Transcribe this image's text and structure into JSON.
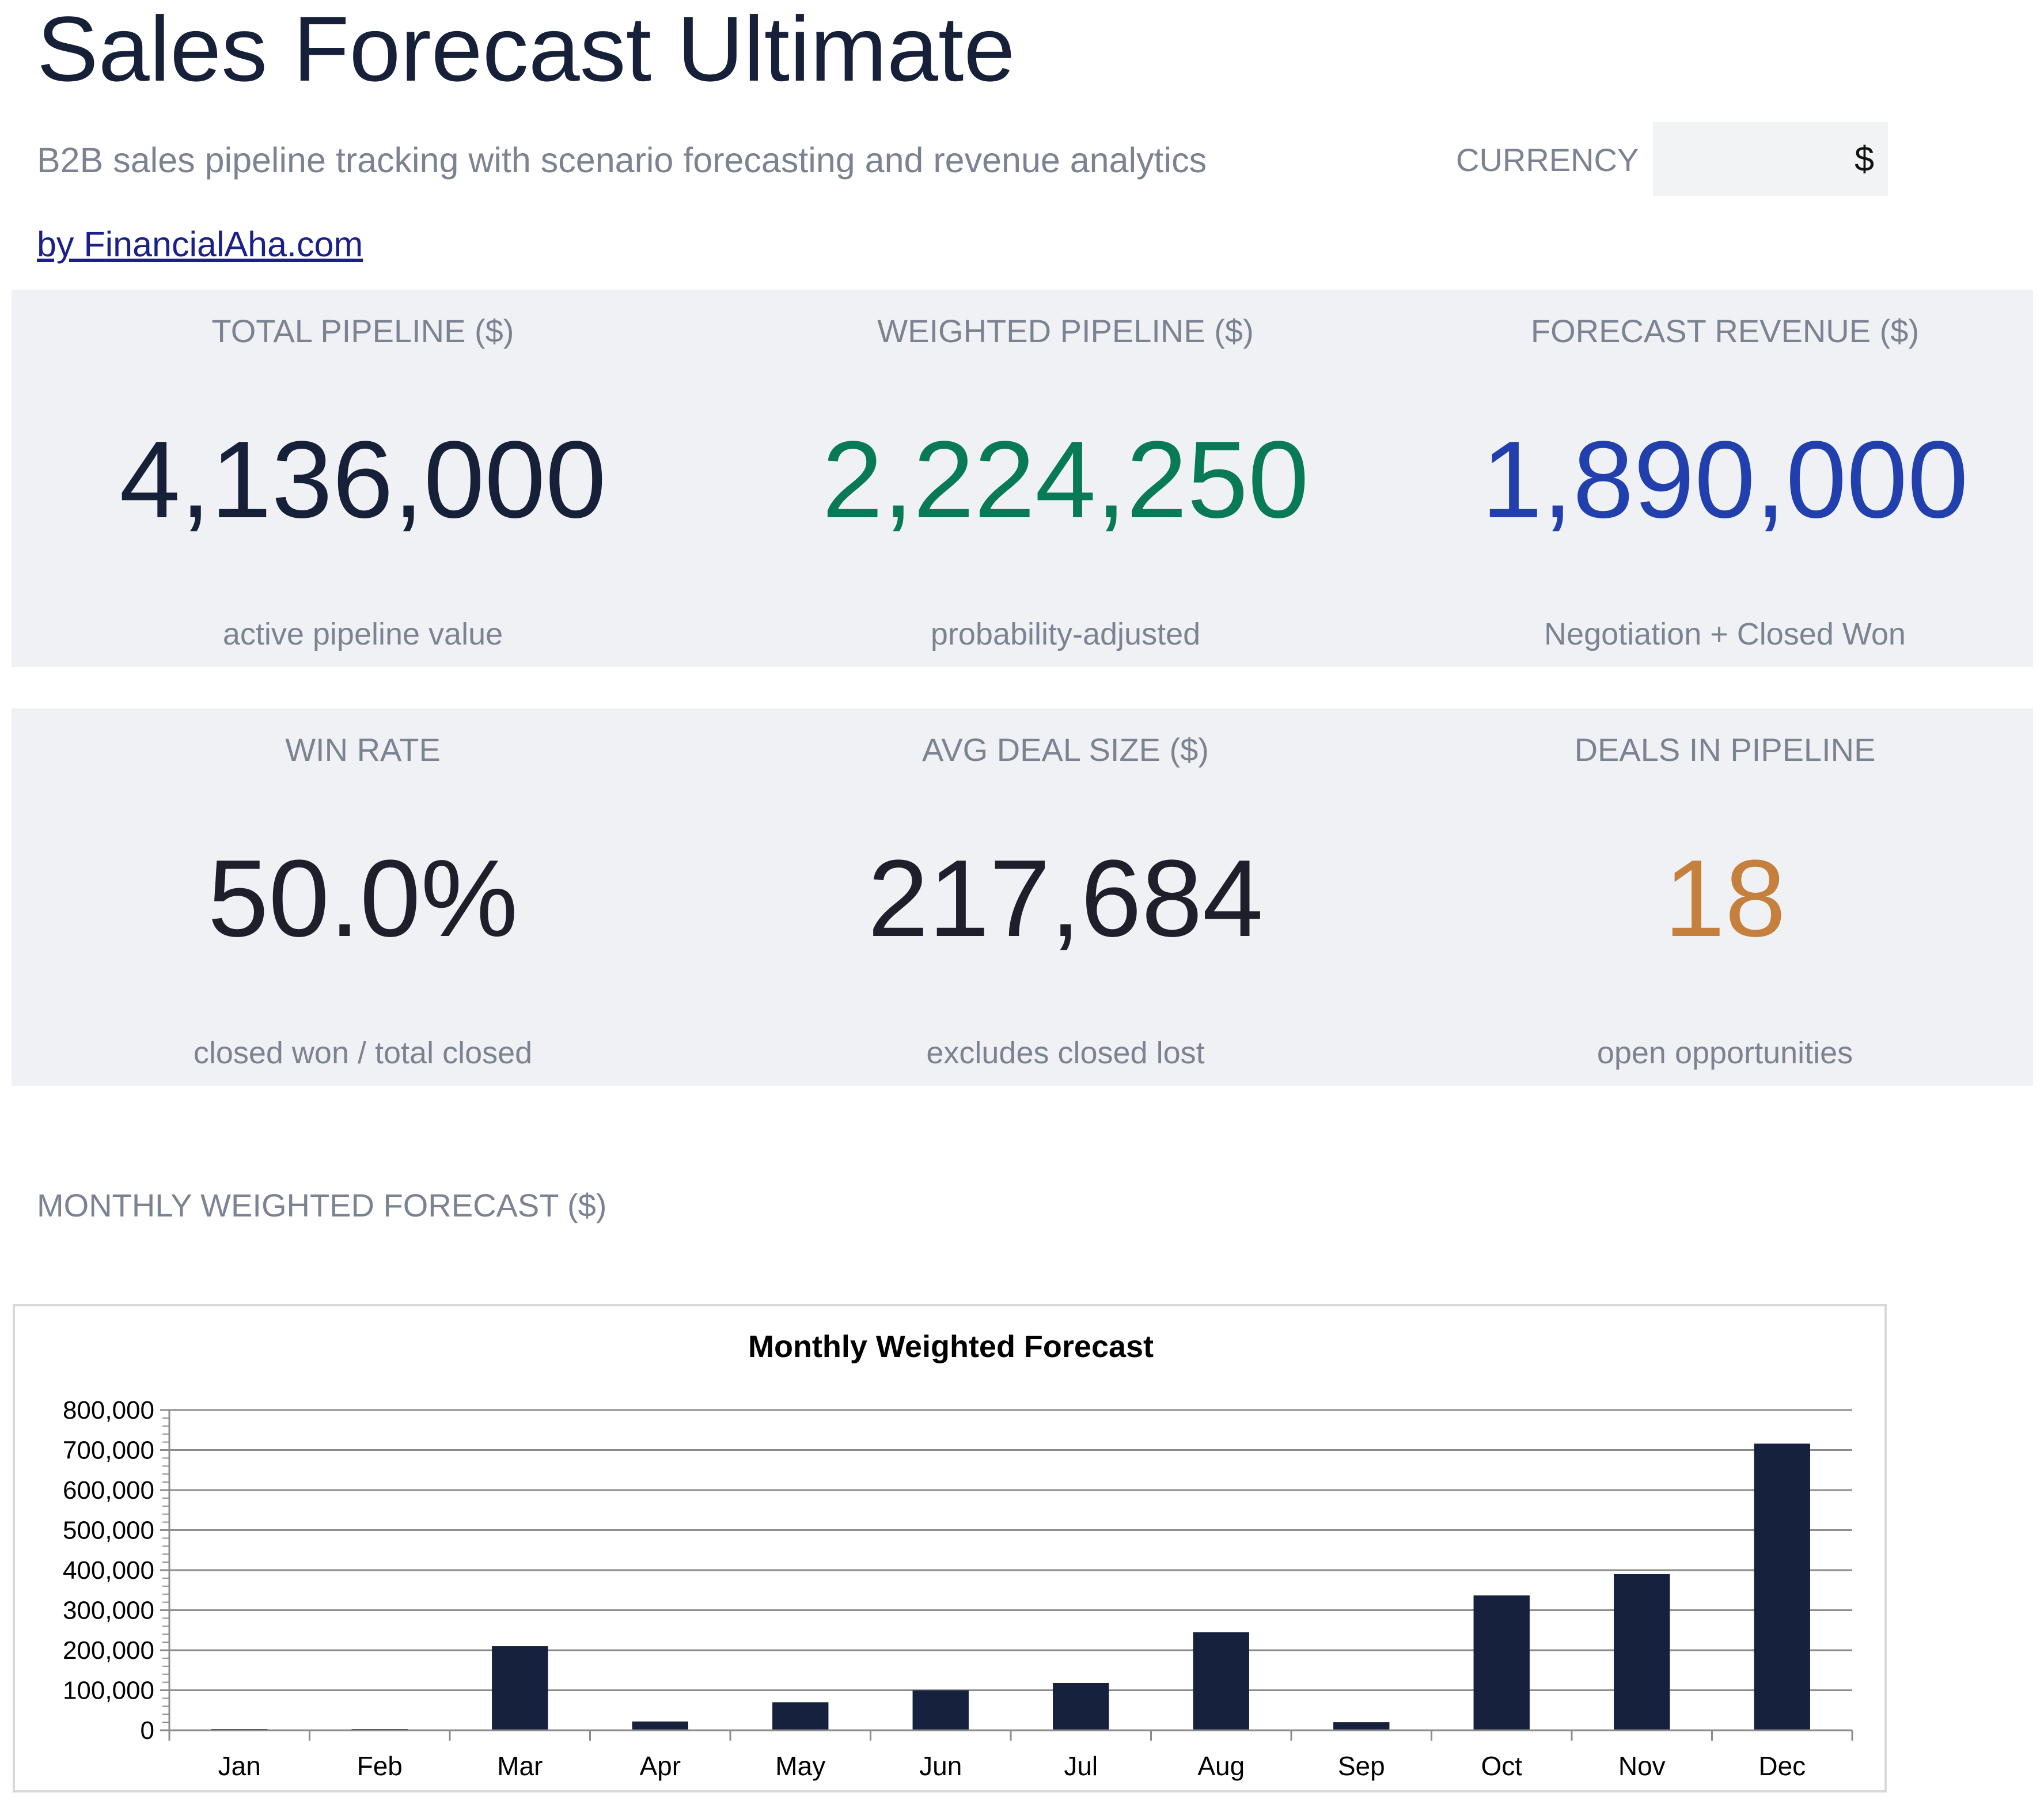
{
  "header": {
    "title": "Sales Forecast Ultimate",
    "subtitle": "B2B sales pipeline tracking with scenario forecasting and revenue analytics",
    "currency_label": "CURRENCY",
    "currency_value": "$",
    "byline": "by FinancialAha.com"
  },
  "colors": {
    "navy": "#162039",
    "green": "#087a55",
    "blue": "#2240ad",
    "orange": "#c4803c",
    "dark": "#1e1f2a",
    "muted": "#7b8393",
    "panel": "#f0f1f4",
    "bar": "#16213d"
  },
  "kpis_row1": [
    {
      "title": "TOTAL PIPELINE ($)",
      "value": "4,136,000",
      "note": "active pipeline value",
      "color": "#162039"
    },
    {
      "title": "WEIGHTED PIPELINE ($)",
      "value": "2,224,250",
      "note": "probability-adjusted",
      "color": "#087a55"
    },
    {
      "title": "FORECAST REVENUE ($)",
      "value": "1,890,000",
      "note": "Negotiation + Closed Won",
      "color": "#2240ad"
    }
  ],
  "kpis_row2": [
    {
      "title": "WIN RATE",
      "value": "50.0%",
      "note": "closed won / total closed",
      "color": "#1e1f2a"
    },
    {
      "title": "AVG DEAL SIZE ($)",
      "value": "217,684",
      "note": "excludes closed lost",
      "color": "#1e1f2a"
    },
    {
      "title": "DEALS IN PIPELINE",
      "value": "18",
      "note": "open opportunities",
      "color": "#c4803c"
    }
  ],
  "section": {
    "title": "MONTHLY WEIGHTED FORECAST ($)"
  },
  "chart_data": {
    "type": "bar",
    "title": "Monthly Weighted Forecast",
    "xlabel": "",
    "ylabel": "",
    "categories": [
      "Jan",
      "Feb",
      "Mar",
      "Apr",
      "May",
      "Jun",
      "Jul",
      "Aug",
      "Sep",
      "Oct",
      "Nov",
      "Dec"
    ],
    "values": [
      0,
      0,
      210000,
      22000,
      70000,
      100000,
      118000,
      245000,
      20000,
      337000,
      390000,
      716000
    ],
    "ylim": [
      0,
      800000
    ],
    "yticks": [
      0,
      100000,
      200000,
      300000,
      400000,
      500000,
      600000,
      700000,
      800000
    ],
    "ytick_labels": [
      "0",
      "100,000",
      "200,000",
      "300,000",
      "400,000",
      "500,000",
      "600,000",
      "700,000",
      "800,000"
    ],
    "grid": true,
    "legend": "none",
    "bar_color": "#16213d"
  }
}
